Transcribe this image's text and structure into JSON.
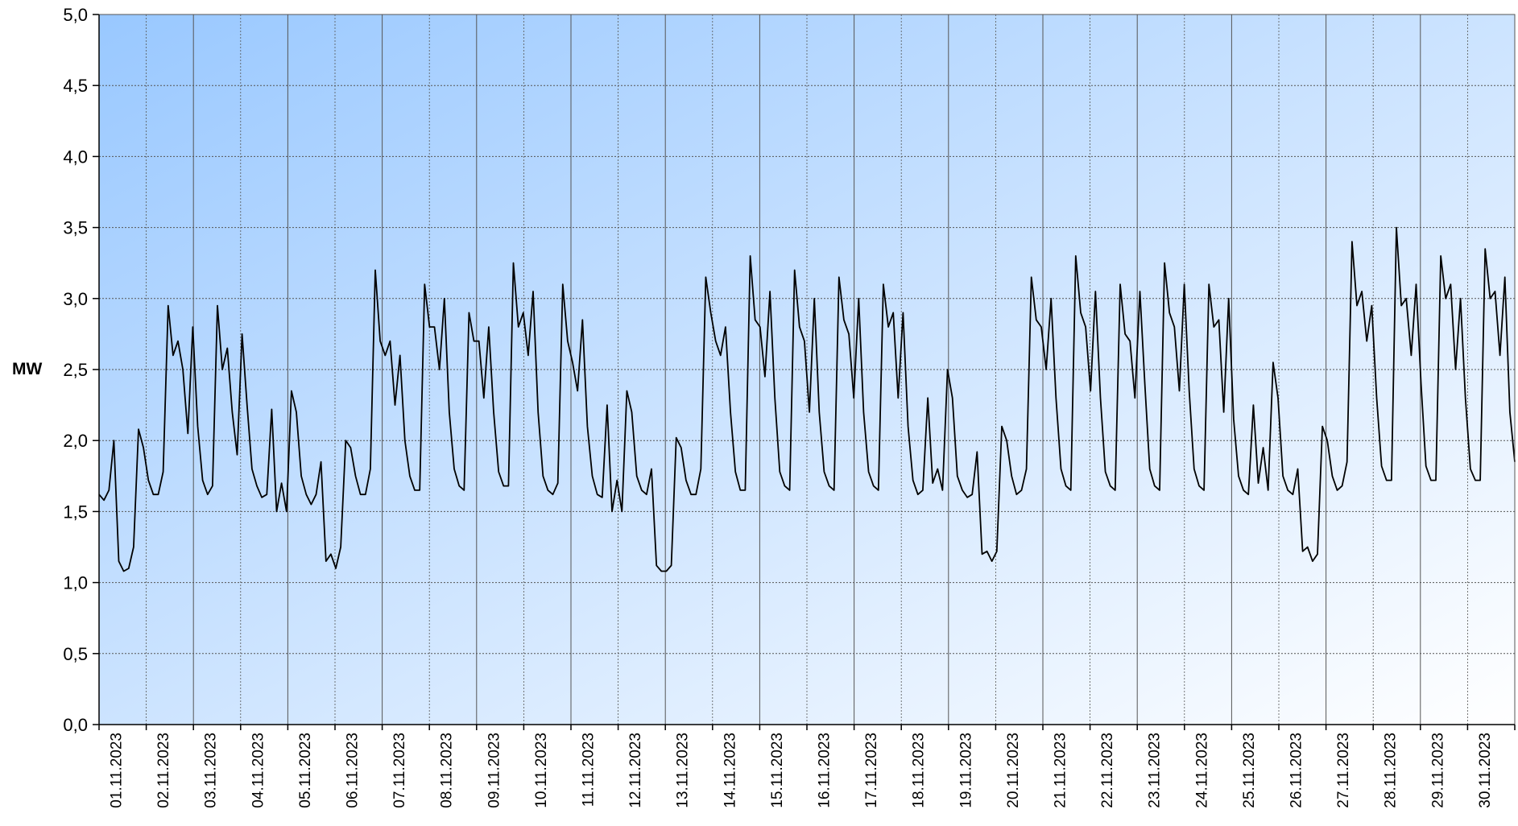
{
  "chart_data": {
    "type": "line",
    "title": "",
    "xlabel": "",
    "ylabel": "MW",
    "ylim": [
      0,
      5
    ],
    "yticks": [
      "0,0",
      "0,5",
      "1,0",
      "1,5",
      "2,0",
      "2,5",
      "3,0",
      "3,5",
      "4,0",
      "4,5",
      "5,0"
    ],
    "xticks": [
      "01.11.2023",
      "02.11.2023",
      "03.11.2023",
      "04.11.2023",
      "05.11.2023",
      "06.11.2023",
      "07.11.2023",
      "08.11.2023",
      "09.11.2023",
      "10.11.2023",
      "11.11.2023",
      "12.11.2023",
      "13.11.2023",
      "14.11.2023",
      "15.11.2023",
      "16.11.2023",
      "17.11.2023",
      "18.11.2023",
      "19.11.2023",
      "20.11.2023",
      "21.11.2023",
      "22.11.2023",
      "23.11.2023",
      "24.11.2023",
      "25.11.2023",
      "26.11.2023",
      "27.11.2023",
      "28.11.2023",
      "29.11.2023",
      "30.11.2023"
    ],
    "grid": true,
    "background": "gradient-blue",
    "colors": {
      "line": "#000000",
      "grid": "#555555",
      "bg_start": "#99c8ff",
      "bg_end": "#ffffff"
    },
    "series": [
      {
        "values": [
          1.62,
          1.58,
          1.65,
          2.0,
          1.15,
          1.08,
          1.1,
          1.25,
          2.08,
          1.95,
          1.72,
          1.62,
          1.62,
          1.78,
          2.95,
          2.6,
          2.7,
          2.5,
          2.05,
          2.8,
          2.1,
          1.72,
          1.62,
          1.68,
          2.95,
          2.5,
          2.65,
          2.2,
          1.9,
          2.75,
          2.25,
          1.8,
          1.68,
          1.6,
          1.62,
          2.22,
          1.5,
          1.7,
          1.5,
          2.35,
          2.2,
          1.75,
          1.62,
          1.55,
          1.62,
          1.85,
          1.15,
          1.2,
          1.1,
          1.25,
          2.0,
          1.95,
          1.75,
          1.62,
          1.62,
          1.8,
          3.2,
          2.7,
          2.6,
          2.7,
          2.25,
          2.6,
          2.0,
          1.75,
          1.65,
          1.65,
          3.1,
          2.8,
          2.8,
          2.5,
          3.0,
          2.2,
          1.8,
          1.68,
          1.65,
          2.9,
          2.7,
          2.7,
          2.3,
          2.8,
          2.2,
          1.78,
          1.68,
          1.68,
          3.25,
          2.8,
          2.9,
          2.6,
          3.05,
          2.2,
          1.75,
          1.65,
          1.62,
          1.7,
          3.1,
          2.7,
          2.55,
          2.35,
          2.85,
          2.1,
          1.75,
          1.62,
          1.6,
          2.25,
          1.5,
          1.72,
          1.5,
          2.35,
          2.2,
          1.75,
          1.65,
          1.62,
          1.8,
          1.12,
          1.08,
          1.08,
          1.12,
          2.02,
          1.95,
          1.72,
          1.62,
          1.62,
          1.8,
          3.15,
          2.9,
          2.7,
          2.6,
          2.8,
          2.2,
          1.78,
          1.65,
          1.65,
          3.3,
          2.85,
          2.8,
          2.45,
          3.05,
          2.3,
          1.78,
          1.68,
          1.65,
          3.2,
          2.8,
          2.7,
          2.2,
          3.0,
          2.2,
          1.78,
          1.68,
          1.65,
          3.15,
          2.85,
          2.75,
          2.3,
          3.0,
          2.2,
          1.78,
          1.68,
          1.65,
          3.1,
          2.8,
          2.9,
          2.3,
          2.9,
          2.1,
          1.72,
          1.62,
          1.65,
          2.3,
          1.7,
          1.8,
          1.65,
          2.5,
          2.3,
          1.75,
          1.65,
          1.6,
          1.62,
          1.92,
          1.2,
          1.22,
          1.15,
          1.22,
          2.1,
          2.0,
          1.75,
          1.62,
          1.65,
          1.8,
          3.15,
          2.85,
          2.8,
          2.5,
          3.0,
          2.3,
          1.8,
          1.68,
          1.65,
          3.3,
          2.9,
          2.8,
          2.35,
          3.05,
          2.3,
          1.78,
          1.68,
          1.65,
          3.1,
          2.75,
          2.7,
          2.3,
          3.05,
          2.4,
          1.8,
          1.68,
          1.65,
          3.25,
          2.9,
          2.8,
          2.35,
          3.1,
          2.35,
          1.8,
          1.68,
          1.65,
          3.1,
          2.8,
          2.85,
          2.2,
          3.0,
          2.15,
          1.75,
          1.65,
          1.62,
          2.25,
          1.7,
          1.95,
          1.65,
          2.55,
          2.3,
          1.75,
          1.65,
          1.62,
          1.8,
          1.22,
          1.25,
          1.15,
          1.2,
          2.1,
          2.0,
          1.75,
          1.65,
          1.68,
          1.85,
          3.4,
          2.95,
          3.05,
          2.7,
          2.95,
          2.3,
          1.82,
          1.72,
          1.72,
          3.5,
          2.95,
          3.0,
          2.6,
          3.1,
          2.4,
          1.82,
          1.72,
          1.72,
          3.3,
          3.0,
          3.1,
          2.5,
          3.0,
          2.3,
          1.8,
          1.72,
          1.72,
          3.35,
          3.0,
          3.05,
          2.6,
          3.15,
          2.2,
          1.85
        ]
      }
    ]
  }
}
